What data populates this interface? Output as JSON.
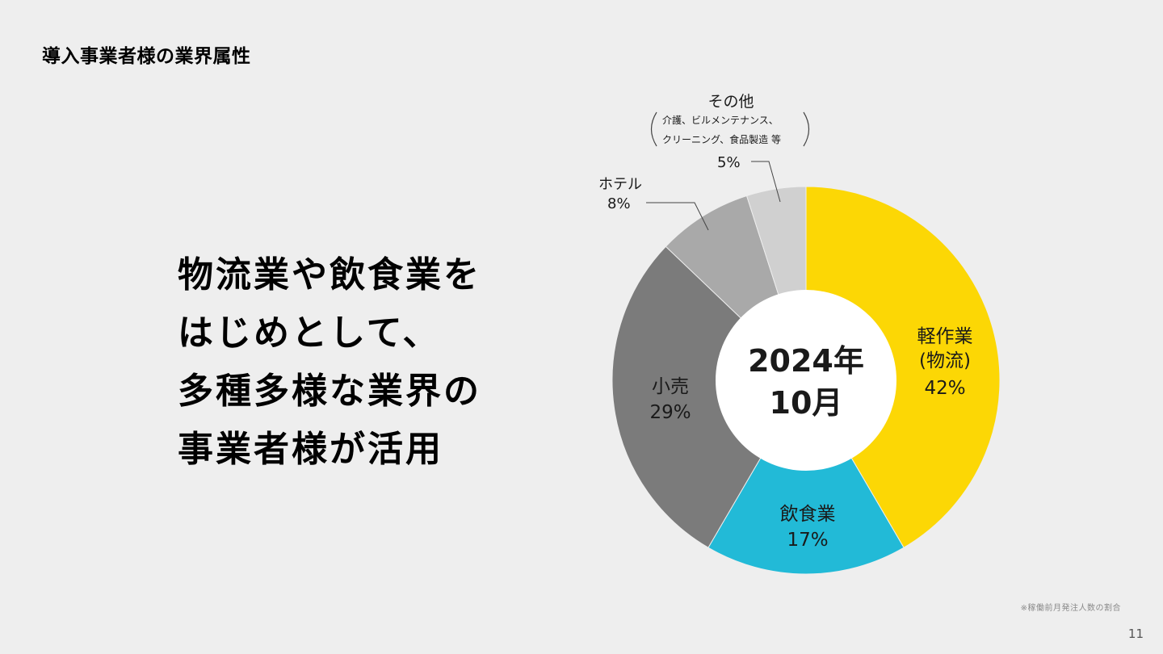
{
  "slide": {
    "title": "導入事業者様の業界属性",
    "headline_lines": [
      "物流業や飲食業を",
      "はじめとして、",
      "多種多様な業界の",
      "事業者様が活用"
    ],
    "footnote": "※稼働前月発注人数の割合",
    "page_number": "11"
  },
  "chart_data": {
    "type": "pie",
    "center_label": [
      "2024年",
      "10月"
    ],
    "slices": [
      {
        "name": "軽作業 (物流)",
        "label_lines": [
          "軽作業",
          "(物流)"
        ],
        "value": 42,
        "value_label": "42%",
        "color": "#fcd705"
      },
      {
        "name": "飲食業",
        "label_lines": [
          "飲食業"
        ],
        "value": 17,
        "value_label": "17%",
        "color": "#22bad7"
      },
      {
        "name": "小売",
        "label_lines": [
          "小売"
        ],
        "value": 29,
        "value_label": "29%",
        "color": "#7b7b7b"
      },
      {
        "name": "ホテル",
        "label_lines": [
          "ホテル"
        ],
        "value": 8,
        "value_label": "8%",
        "color": "#a9a9a9"
      },
      {
        "name": "その他",
        "label_lines": [
          "その他"
        ],
        "value": 5,
        "value_label": "5%",
        "color": "#d0d0d0",
        "sub_lines": [
          "介護、ビルメンテナンス、",
          "クリーニング、食品製造 等"
        ]
      }
    ]
  }
}
